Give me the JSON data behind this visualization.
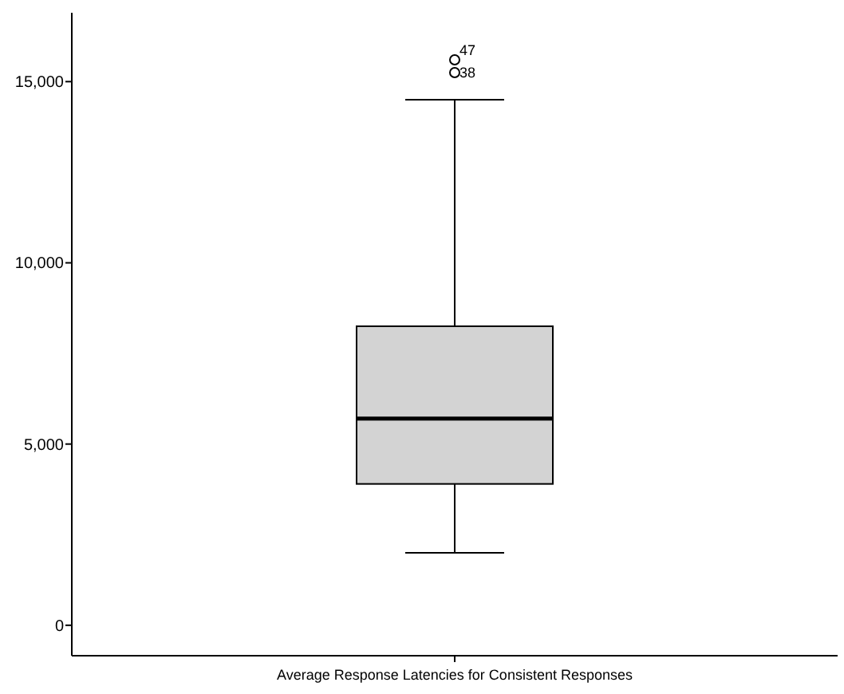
{
  "chart_data": {
    "type": "box",
    "categories": [
      "Average Response Latencies for Consistent Responses"
    ],
    "boxes": [
      {
        "low": 2000,
        "q1": 3900,
        "median": 5700,
        "q3": 8250,
        "high": 14500,
        "outliers": [
          15600,
          15250
        ]
      }
    ],
    "color": "#d3d3d3",
    "ylim": [
      -840,
      16900
    ],
    "yticks": [
      {
        "value": 0,
        "label": "0"
      },
      {
        "value": 5000,
        "label": "5,000"
      },
      {
        "value": 10000,
        "label": "10,000"
      },
      {
        "value": 15000,
        "label": "15,000"
      }
    ],
    "annotations": [
      "47",
      "38"
    ]
  }
}
